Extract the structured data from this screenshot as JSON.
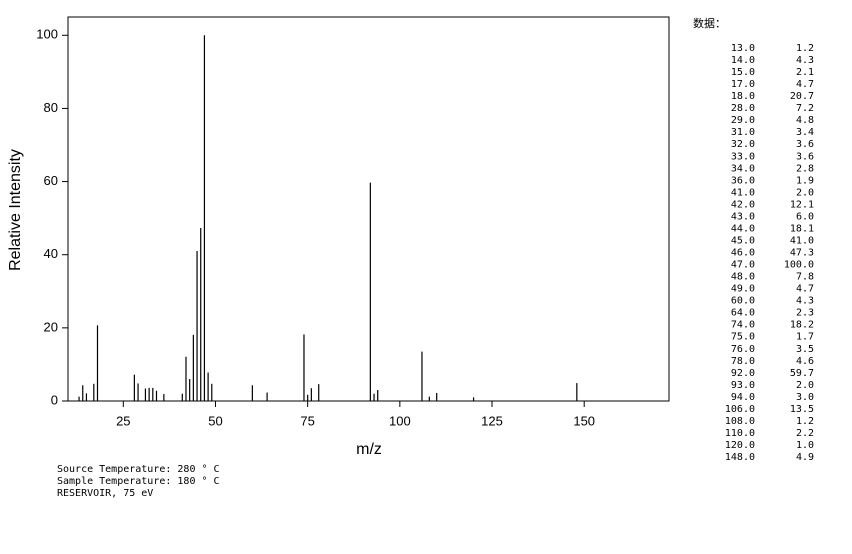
{
  "chart_data": {
    "type": "bar",
    "xlabel": "m/z",
    "ylabel": "Relative Intensity",
    "x": [
      13,
      14,
      15,
      17,
      18,
      28,
      29,
      31,
      32,
      33,
      34,
      36,
      41,
      42,
      43,
      44,
      45,
      46,
      47,
      48,
      49,
      60,
      64,
      74,
      75,
      76,
      78,
      92,
      93,
      94,
      106,
      108,
      110,
      120,
      148
    ],
    "x_labels": [
      "13.0",
      "14.0",
      "15.0",
      "17.0",
      "18.0",
      "28.0",
      "29.0",
      "31.0",
      "32.0",
      "33.0",
      "34.0",
      "36.0",
      "41.0",
      "42.0",
      "43.0",
      "44.0",
      "45.0",
      "46.0",
      "47.0",
      "48.0",
      "49.0",
      "60.0",
      "64.0",
      "74.0",
      "75.0",
      "76.0",
      "78.0",
      "92.0",
      "93.0",
      "94.0",
      "106.0",
      "108.0",
      "110.0",
      "120.0",
      "148.0"
    ],
    "values": [
      1.2,
      4.3,
      2.1,
      4.7,
      20.7,
      7.2,
      4.8,
      3.4,
      3.6,
      3.6,
      2.8,
      1.9,
      2,
      12.1,
      6,
      18.1,
      41,
      47.3,
      100,
      7.8,
      4.7,
      4.3,
      2.3,
      18.2,
      1.7,
      3.5,
      4.6,
      59.7,
      2,
      3,
      13.5,
      1.2,
      2.2,
      1,
      4.9
    ],
    "value_labels": [
      "1.2",
      "4.3",
      "2.1",
      "4.7",
      "20.7",
      "7.2",
      "4.8",
      "3.4",
      "3.6",
      "3.6",
      "2.8",
      "1.9",
      "2.0",
      "12.1",
      "6.0",
      "18.1",
      "41.0",
      "47.3",
      "100.0",
      "7.8",
      "4.7",
      "4.3",
      "2.3",
      "18.2",
      "1.7",
      "3.5",
      "4.6",
      "59.7",
      "2.0",
      "3.0",
      "13.5",
      "1.2",
      "2.2",
      "1.0",
      "4.9"
    ],
    "color": "#000000",
    "xlim": [
      10,
      173
    ],
    "xticks": [
      25,
      50,
      75,
      100,
      125,
      150
    ],
    "ylim": [
      0,
      105
    ],
    "yticks": [
      0,
      20,
      40,
      60,
      80,
      100
    ],
    "table_title": "数据：",
    "annotations": [
      "Source Temperature: 280 ° C",
      "Sample Temperature: 180 ° C",
      "RESERVOIR, 75 eV"
    ]
  }
}
